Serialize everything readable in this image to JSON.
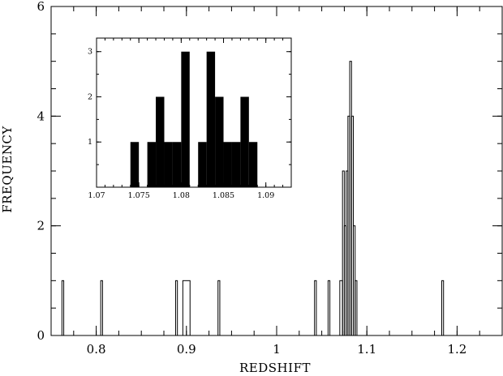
{
  "chart_data": [
    {
      "type": "histogram",
      "title": "",
      "xlabel": "REDSHIFT",
      "ylabel": "FREQUENCY",
      "xlim": [
        0.75,
        1.25
      ],
      "ylim": [
        0,
        6
      ],
      "x_ticks": [
        0.8,
        0.9,
        1,
        1.1,
        1.2
      ],
      "y_ticks": [
        0,
        2,
        4,
        6
      ],
      "style": "outline",
      "grid": false,
      "bins": [
        {
          "x0": 0.762,
          "x1": 0.764,
          "count": 1
        },
        {
          "x0": 0.805,
          "x1": 0.807,
          "count": 1
        },
        {
          "x0": 0.888,
          "x1": 0.89,
          "count": 1
        },
        {
          "x0": 0.896,
          "x1": 0.904,
          "count": 1
        },
        {
          "x0": 0.935,
          "x1": 0.937,
          "count": 1
        },
        {
          "x0": 1.042,
          "x1": 1.044,
          "count": 1
        },
        {
          "x0": 1.057,
          "x1": 1.059,
          "count": 1
        },
        {
          "x0": 1.07,
          "x1": 1.073,
          "count": 1
        },
        {
          "x0": 1.073,
          "x1": 1.075,
          "count": 3
        },
        {
          "x0": 1.075,
          "x1": 1.077,
          "count": 2
        },
        {
          "x0": 1.077,
          "x1": 1.079,
          "count": 3
        },
        {
          "x0": 1.079,
          "x1": 1.081,
          "count": 4
        },
        {
          "x0": 1.081,
          "x1": 1.083,
          "count": 5
        },
        {
          "x0": 1.083,
          "x1": 1.085,
          "count": 4
        },
        {
          "x0": 1.085,
          "x1": 1.087,
          "count": 2
        },
        {
          "x0": 1.087,
          "x1": 1.089,
          "count": 1
        },
        {
          "x0": 1.183,
          "x1": 1.185,
          "count": 1
        }
      ]
    },
    {
      "type": "histogram",
      "role": "inset",
      "title": "",
      "xlabel": "",
      "ylabel": "",
      "xlim": [
        1.07,
        1.093
      ],
      "ylim": [
        0,
        3.3
      ],
      "x_ticks": [
        1.07,
        1.075,
        1.08,
        1.085,
        1.09
      ],
      "y_ticks": [
        1,
        2,
        3
      ],
      "style": "filled",
      "bin_width": 0.001,
      "bins": [
        {
          "x0": 1.074,
          "x1": 1.075,
          "count": 1
        },
        {
          "x0": 1.076,
          "x1": 1.077,
          "count": 1
        },
        {
          "x0": 1.077,
          "x1": 1.078,
          "count": 2
        },
        {
          "x0": 1.078,
          "x1": 1.079,
          "count": 1
        },
        {
          "x0": 1.079,
          "x1": 1.08,
          "count": 1
        },
        {
          "x0": 1.08,
          "x1": 1.081,
          "count": 3
        },
        {
          "x0": 1.082,
          "x1": 1.083,
          "count": 1
        },
        {
          "x0": 1.083,
          "x1": 1.084,
          "count": 3
        },
        {
          "x0": 1.084,
          "x1": 1.085,
          "count": 2
        },
        {
          "x0": 1.085,
          "x1": 1.086,
          "count": 1
        },
        {
          "x0": 1.086,
          "x1": 1.087,
          "count": 1
        },
        {
          "x0": 1.087,
          "x1": 1.088,
          "count": 2
        },
        {
          "x0": 1.088,
          "x1": 1.089,
          "count": 1
        }
      ]
    }
  ]
}
